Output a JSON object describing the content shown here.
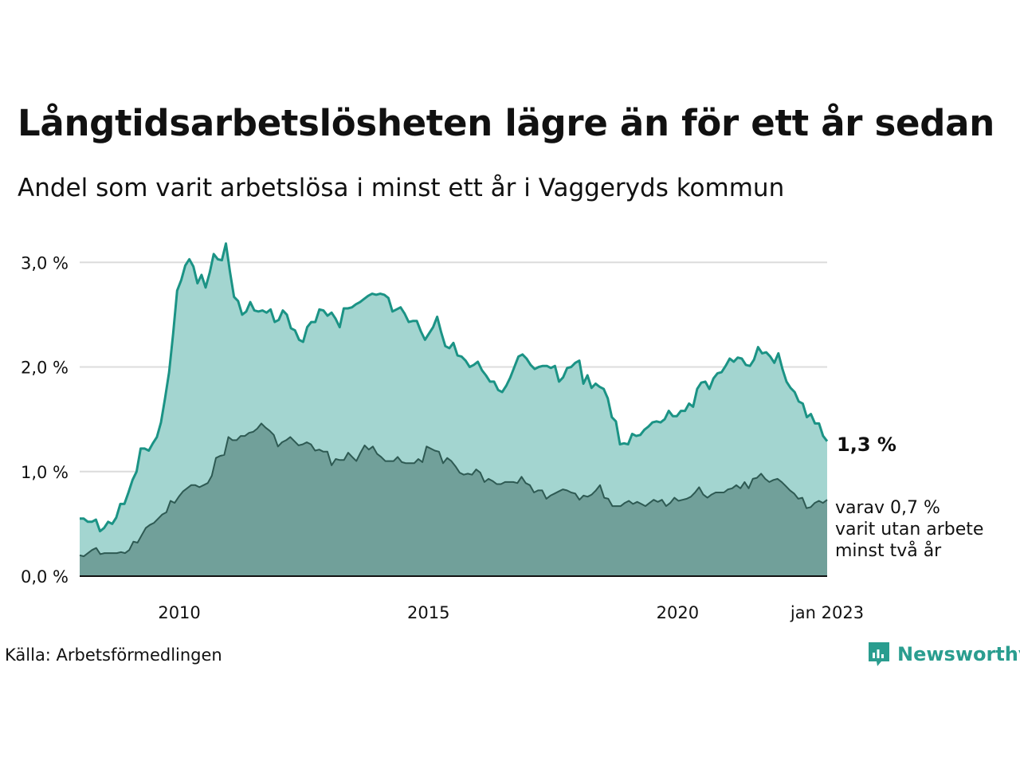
{
  "title": "Långtidsarbetslösheten lägre än för ett år sedan",
  "subtitle": "Andel som varit arbetslösa i minst ett år i Vaggeryds kommun",
  "source": "Källa: Arbetsförmedlingen",
  "brand": "Newsworthy",
  "colors": {
    "outer_line": "#1b9385",
    "outer_fill": "#a3d5d0",
    "inner_line": "#2e5a53",
    "inner_fill": "#71a09a",
    "brand": "#2a9d8f"
  },
  "chart_data": {
    "type": "area",
    "title": "Långtidsarbetslösheten lägre än för ett år sedan",
    "subtitle": "Andel som varit arbetslösa i minst ett år i Vaggeryds kommun",
    "x_ticks": [
      {
        "label": "2010",
        "x": 2010.0
      },
      {
        "label": "2015",
        "x": 2015.0
      },
      {
        "label": "2020",
        "x": 2020.0
      },
      {
        "label": "jan 2023",
        "x": 2023.0
      }
    ],
    "y_ticks": [
      {
        "label": "0,0 %",
        "value": 0
      },
      {
        "label": "1,0 %",
        "value": 1
      },
      {
        "label": "2,0 %",
        "value": 2
      },
      {
        "label": "3,0 %",
        "value": 3
      }
    ],
    "xlim": [
      2008.0,
      2023.0
    ],
    "ylim": [
      0,
      3.2
    ],
    "grid": true,
    "x_start": "2008-01",
    "x_step": "1 month",
    "series": [
      {
        "name": "",
        "end_label": "1,3 %",
        "values": [
          0.55,
          0.55,
          0.52,
          0.52,
          0.54,
          0.43,
          0.46,
          0.52,
          0.5,
          0.56,
          0.69,
          0.69,
          0.8,
          0.92,
          1.0,
          1.22,
          1.22,
          1.2,
          1.27,
          1.33,
          1.47,
          1.7,
          1.95,
          2.32,
          2.73,
          2.83,
          2.97,
          3.03,
          2.96,
          2.8,
          2.88,
          2.76,
          2.9,
          3.08,
          3.03,
          3.02,
          3.18,
          2.91,
          2.67,
          2.63,
          2.5,
          2.53,
          2.62,
          2.54,
          2.53,
          2.54,
          2.52,
          2.55,
          2.43,
          2.45,
          2.54,
          2.5,
          2.37,
          2.35,
          2.26,
          2.24,
          2.38,
          2.43,
          2.43,
          2.55,
          2.54,
          2.49,
          2.52,
          2.46,
          2.38,
          2.56,
          2.56,
          2.57,
          2.6,
          2.62,
          2.65,
          2.68,
          2.7,
          2.69,
          2.7,
          2.69,
          2.66,
          2.53,
          2.55,
          2.57,
          2.51,
          2.43,
          2.44,
          2.44,
          2.34,
          2.26,
          2.32,
          2.38,
          2.48,
          2.33,
          2.2,
          2.18,
          2.23,
          2.11,
          2.1,
          2.06,
          2.0,
          2.02,
          2.05,
          1.97,
          1.92,
          1.86,
          1.86,
          1.78,
          1.76,
          1.82,
          1.9,
          2.0,
          2.1,
          2.12,
          2.08,
          2.02,
          1.98,
          2.0,
          2.01,
          2.01,
          1.99,
          2.01,
          1.86,
          1.9,
          1.99,
          2.0,
          2.04,
          2.06,
          1.84,
          1.92,
          1.8,
          1.84,
          1.81,
          1.79,
          1.7,
          1.52,
          1.48,
          1.26,
          1.27,
          1.26,
          1.36,
          1.34,
          1.35,
          1.4,
          1.43,
          1.47,
          1.48,
          1.47,
          1.5,
          1.58,
          1.53,
          1.53,
          1.58,
          1.58,
          1.65,
          1.62,
          1.79,
          1.85,
          1.86,
          1.79,
          1.89,
          1.94,
          1.95,
          2.01,
          2.08,
          2.05,
          2.09,
          2.08,
          2.02,
          2.01,
          2.07,
          2.19,
          2.13,
          2.14,
          2.1,
          2.04,
          2.13,
          1.98,
          1.86,
          1.8,
          1.76,
          1.67,
          1.65,
          1.52,
          1.55,
          1.46,
          1.46,
          1.34,
          1.29
        ]
      },
      {
        "name": "",
        "end_label": "varav 0,7 % varit utan arbete minst två år",
        "end_label_lines": [
          "varav 0,7 %",
          "varit utan arbete",
          "minst två år"
        ],
        "values": [
          0.2,
          0.19,
          0.22,
          0.25,
          0.27,
          0.21,
          0.22,
          0.22,
          0.22,
          0.22,
          0.23,
          0.22,
          0.25,
          0.33,
          0.32,
          0.39,
          0.46,
          0.49,
          0.51,
          0.55,
          0.59,
          0.61,
          0.72,
          0.7,
          0.76,
          0.81,
          0.84,
          0.87,
          0.87,
          0.85,
          0.87,
          0.89,
          0.96,
          1.13,
          1.15,
          1.16,
          1.33,
          1.3,
          1.3,
          1.34,
          1.34,
          1.37,
          1.38,
          1.41,
          1.46,
          1.42,
          1.39,
          1.35,
          1.24,
          1.28,
          1.3,
          1.33,
          1.29,
          1.25,
          1.26,
          1.28,
          1.26,
          1.2,
          1.21,
          1.19,
          1.19,
          1.06,
          1.12,
          1.11,
          1.11,
          1.18,
          1.14,
          1.1,
          1.18,
          1.25,
          1.21,
          1.24,
          1.17,
          1.14,
          1.1,
          1.1,
          1.1,
          1.14,
          1.09,
          1.08,
          1.08,
          1.08,
          1.12,
          1.09,
          1.24,
          1.22,
          1.2,
          1.19,
          1.08,
          1.13,
          1.1,
          1.05,
          0.99,
          0.97,
          0.98,
          0.97,
          1.02,
          0.99,
          0.9,
          0.93,
          0.91,
          0.88,
          0.88,
          0.9,
          0.9,
          0.9,
          0.89,
          0.95,
          0.89,
          0.87,
          0.8,
          0.82,
          0.82,
          0.74,
          0.77,
          0.79,
          0.81,
          0.83,
          0.82,
          0.8,
          0.79,
          0.73,
          0.77,
          0.76,
          0.78,
          0.82,
          0.87,
          0.75,
          0.74,
          0.67,
          0.67,
          0.67,
          0.7,
          0.72,
          0.69,
          0.71,
          0.69,
          0.67,
          0.7,
          0.73,
          0.71,
          0.73,
          0.67,
          0.7,
          0.75,
          0.72,
          0.73,
          0.74,
          0.76,
          0.8,
          0.85,
          0.78,
          0.75,
          0.78,
          0.8,
          0.8,
          0.8,
          0.83,
          0.84,
          0.87,
          0.84,
          0.9,
          0.84,
          0.93,
          0.94,
          0.98,
          0.93,
          0.9,
          0.92,
          0.93,
          0.9,
          0.86,
          0.82,
          0.79,
          0.74,
          0.75,
          0.65,
          0.66,
          0.7,
          0.72,
          0.7,
          0.73
        ]
      }
    ]
  }
}
